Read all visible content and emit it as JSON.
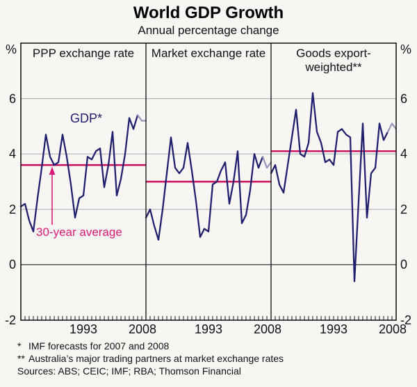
{
  "header": {
    "title": "World GDP Growth",
    "subtitle": "Annual percentage change"
  },
  "annotations": {
    "gdp_series_label": "GDP*",
    "average_line_label": "30-year average"
  },
  "colors": {
    "gdp_line": "#20206e",
    "gdp_forecast": "#9797bb",
    "average_line": "#c90a5d",
    "annotation_pink": "#db1a78",
    "grid": "#b4b4b4",
    "zero_line": "#3c3c3c",
    "frame": "#1a1a1a",
    "background": "#f7f6f3"
  },
  "footnotes": [
    {
      "marker": "*",
      "text": "IMF forecasts for 2007 and 2008"
    },
    {
      "marker": "**",
      "text": "Australia’s major trading partners at market exchange rates"
    }
  ],
  "sources": "Sources: ABS; CEIC; IMF; RBA; Thomson Financial",
  "chart_data": {
    "type": "line",
    "title": "World GDP Growth",
    "subtitle": "Annual percentage change",
    "unit": "%",
    "ylim": [
      -2,
      8
    ],
    "yticks": [
      6,
      4,
      2,
      0,
      -2
    ],
    "gridlines_at": [
      2,
      4,
      6
    ],
    "zero_line": true,
    "x_tick_labels": [
      "1993",
      "2008"
    ],
    "forecast_years": [
      2007,
      2008
    ],
    "x_years": [
      1978,
      1979,
      1980,
      1981,
      1982,
      1983,
      1984,
      1985,
      1986,
      1987,
      1988,
      1989,
      1990,
      1991,
      1992,
      1993,
      1994,
      1995,
      1996,
      1997,
      1998,
      1999,
      2000,
      2001,
      2002,
      2003,
      2004,
      2005,
      2006,
      2007,
      2008
    ],
    "panels": [
      {
        "label": "PPP exchange rate",
        "thirty_year_average": 3.6,
        "values": [
          2.1,
          2.2,
          1.6,
          1.2,
          2.4,
          3.5,
          4.7,
          3.9,
          3.6,
          3.7,
          4.7,
          3.9,
          2.9,
          1.7,
          2.4,
          2.5,
          3.9,
          3.8,
          4.1,
          4.2,
          2.8,
          3.6,
          4.8,
          2.5,
          3.1,
          4.0,
          5.3,
          4.9,
          5.4,
          5.2,
          5.2
        ]
      },
      {
        "label": "Market exchange rate",
        "thirty_year_average": 3.0,
        "values": [
          1.7,
          2.0,
          1.4,
          0.9,
          2.0,
          3.3,
          4.6,
          3.5,
          3.3,
          3.5,
          4.4,
          3.4,
          2.3,
          1.0,
          1.3,
          1.2,
          2.9,
          3.0,
          3.4,
          3.7,
          2.2,
          3.0,
          4.1,
          1.5,
          1.8,
          2.7,
          4.0,
          3.5,
          3.9,
          3.5,
          3.7
        ]
      },
      {
        "label": "Goods export-weighted**",
        "thirty_year_average": 4.1,
        "values": [
          3.3,
          3.6,
          2.9,
          2.6,
          3.6,
          4.6,
          5.6,
          4.0,
          3.9,
          4.4,
          6.2,
          4.8,
          4.4,
          3.7,
          3.8,
          3.6,
          4.8,
          4.9,
          4.7,
          4.6,
          -0.6,
          2.3,
          5.1,
          1.7,
          3.3,
          3.5,
          5.1,
          4.5,
          4.8,
          5.1,
          4.9
        ]
      }
    ]
  }
}
